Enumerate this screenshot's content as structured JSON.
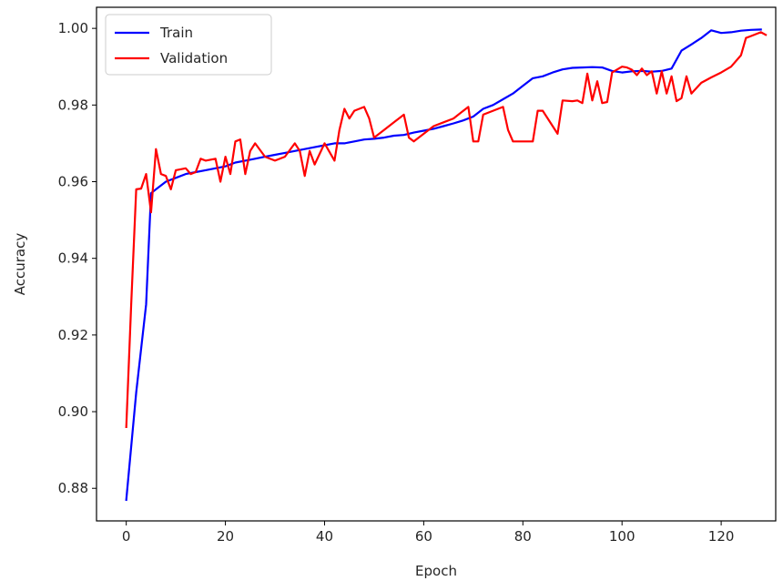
{
  "chart_data": {
    "type": "line",
    "xlabel": "Epoch",
    "ylabel": "Accuracy",
    "xlim": [
      -6,
      131
    ],
    "ylim": [
      0.8715,
      1.0055
    ],
    "xticks": [
      0,
      20,
      40,
      60,
      80,
      100,
      120
    ],
    "yticks": [
      0.88,
      0.9,
      0.92,
      0.94,
      0.96,
      0.98,
      1.0
    ],
    "ytick_labels": [
      "0.88",
      "0.90",
      "0.92",
      "0.94",
      "0.96",
      "0.98",
      "1.00"
    ],
    "xtick_labels": [
      "0",
      "20",
      "40",
      "60",
      "80",
      "100",
      "120"
    ],
    "grid": false,
    "legend_position": "upper-left",
    "series": [
      {
        "name": "Train",
        "color": "#0000ff",
        "points": [
          [
            0,
            0.877
          ],
          [
            2,
            0.905
          ],
          [
            4,
            0.928
          ],
          [
            5,
            0.957
          ],
          [
            6,
            0.958
          ],
          [
            8,
            0.96
          ],
          [
            10,
            0.961
          ],
          [
            12,
            0.962
          ],
          [
            14,
            0.9625
          ],
          [
            16,
            0.963
          ],
          [
            18,
            0.9635
          ],
          [
            20,
            0.964
          ],
          [
            22,
            0.965
          ],
          [
            24,
            0.9655
          ],
          [
            26,
            0.966
          ],
          [
            28,
            0.9665
          ],
          [
            30,
            0.967
          ],
          [
            32,
            0.9675
          ],
          [
            34,
            0.968
          ],
          [
            36,
            0.9685
          ],
          [
            38,
            0.969
          ],
          [
            40,
            0.9695
          ],
          [
            42,
            0.97
          ],
          [
            44,
            0.97
          ],
          [
            46,
            0.9705
          ],
          [
            48,
            0.971
          ],
          [
            50,
            0.9712
          ],
          [
            52,
            0.9715
          ],
          [
            54,
            0.972
          ],
          [
            56,
            0.9722
          ],
          [
            58,
            0.9728
          ],
          [
            60,
            0.9733
          ],
          [
            62,
            0.9738
          ],
          [
            64,
            0.9745
          ],
          [
            66,
            0.9752
          ],
          [
            68,
            0.976
          ],
          [
            70,
            0.977
          ],
          [
            72,
            0.979
          ],
          [
            74,
            0.98
          ],
          [
            76,
            0.9815
          ],
          [
            78,
            0.983
          ],
          [
            80,
            0.985
          ],
          [
            82,
            0.987
          ],
          [
            84,
            0.9875
          ],
          [
            86,
            0.9885
          ],
          [
            88,
            0.9893
          ],
          [
            90,
            0.9897
          ],
          [
            92,
            0.9898
          ],
          [
            94,
            0.9899
          ],
          [
            96,
            0.9898
          ],
          [
            98,
            0.9889
          ],
          [
            100,
            0.9885
          ],
          [
            102,
            0.9888
          ],
          [
            104,
            0.9889
          ],
          [
            106,
            0.9887
          ],
          [
            108,
            0.9889
          ],
          [
            110,
            0.9895
          ],
          [
            112,
            0.9942
          ],
          [
            114,
            0.9958
          ],
          [
            116,
            0.9975
          ],
          [
            118,
            0.9995
          ],
          [
            120,
            0.9988
          ],
          [
            122,
            0.999
          ],
          [
            124,
            0.9994
          ],
          [
            126,
            0.9996
          ],
          [
            128,
            0.9997
          ]
        ]
      },
      {
        "name": "Validation",
        "color": "#ff0000",
        "points": [
          [
            0,
            0.896
          ],
          [
            1,
            0.928
          ],
          [
            2,
            0.958
          ],
          [
            3,
            0.9582
          ],
          [
            4,
            0.962
          ],
          [
            5,
            0.952
          ],
          [
            6,
            0.9685
          ],
          [
            7,
            0.962
          ],
          [
            8,
            0.9615
          ],
          [
            9,
            0.958
          ],
          [
            10,
            0.963
          ],
          [
            12,
            0.9635
          ],
          [
            13,
            0.962
          ],
          [
            14,
            0.9625
          ],
          [
            15,
            0.966
          ],
          [
            16,
            0.9655
          ],
          [
            18,
            0.966
          ],
          [
            19,
            0.96
          ],
          [
            20,
            0.9665
          ],
          [
            21,
            0.962
          ],
          [
            22,
            0.9705
          ],
          [
            23,
            0.971
          ],
          [
            24,
            0.962
          ],
          [
            25,
            0.968
          ],
          [
            26,
            0.97
          ],
          [
            28,
            0.9665
          ],
          [
            30,
            0.9655
          ],
          [
            32,
            0.9665
          ],
          [
            34,
            0.97
          ],
          [
            35,
            0.968
          ],
          [
            36,
            0.9615
          ],
          [
            37,
            0.968
          ],
          [
            38,
            0.9645
          ],
          [
            40,
            0.97
          ],
          [
            42,
            0.9655
          ],
          [
            43,
            0.9735
          ],
          [
            44,
            0.979
          ],
          [
            45,
            0.9765
          ],
          [
            46,
            0.9785
          ],
          [
            48,
            0.9795
          ],
          [
            49,
            0.9765
          ],
          [
            50,
            0.9715
          ],
          [
            52,
            0.9735
          ],
          [
            54,
            0.9755
          ],
          [
            56,
            0.9775
          ],
          [
            57,
            0.9715
          ],
          [
            58,
            0.9705
          ],
          [
            60,
            0.9725
          ],
          [
            62,
            0.9745
          ],
          [
            64,
            0.9755
          ],
          [
            66,
            0.9765
          ],
          [
            68,
            0.9785
          ],
          [
            69,
            0.9795
          ],
          [
            70,
            0.9705
          ],
          [
            71,
            0.9705
          ],
          [
            72,
            0.9775
          ],
          [
            74,
            0.9785
          ],
          [
            76,
            0.9795
          ],
          [
            77,
            0.9735
          ],
          [
            78,
            0.9705
          ],
          [
            80,
            0.9705
          ],
          [
            82,
            0.9705
          ],
          [
            83,
            0.9785
          ],
          [
            84,
            0.9785
          ],
          [
            86,
            0.9745
          ],
          [
            87,
            0.9725
          ],
          [
            88,
            0.9812
          ],
          [
            90,
            0.981
          ],
          [
            91,
            0.9812
          ],
          [
            92,
            0.9805
          ],
          [
            93,
            0.9882
          ],
          [
            94,
            0.9812
          ],
          [
            95,
            0.9862
          ],
          [
            96,
            0.9805
          ],
          [
            97,
            0.9808
          ],
          [
            98,
            0.9885
          ],
          [
            100,
            0.99
          ],
          [
            101,
            0.9898
          ],
          [
            102,
            0.9892
          ],
          [
            103,
            0.9878
          ],
          [
            104,
            0.9895
          ],
          [
            105,
            0.9878
          ],
          [
            106,
            0.9888
          ],
          [
            107,
            0.983
          ],
          [
            108,
            0.9888
          ],
          [
            109,
            0.983
          ],
          [
            110,
            0.9875
          ],
          [
            111,
            0.981
          ],
          [
            112,
            0.9818
          ],
          [
            113,
            0.9875
          ],
          [
            114,
            0.983
          ],
          [
            116,
            0.9858
          ],
          [
            118,
            0.9872
          ],
          [
            120,
            0.9885
          ],
          [
            122,
            0.99
          ],
          [
            124,
            0.993
          ],
          [
            125,
            0.9975
          ],
          [
            126,
            0.998
          ],
          [
            127,
            0.9985
          ],
          [
            128,
            0.999
          ],
          [
            129,
            0.9983
          ]
        ]
      }
    ]
  }
}
